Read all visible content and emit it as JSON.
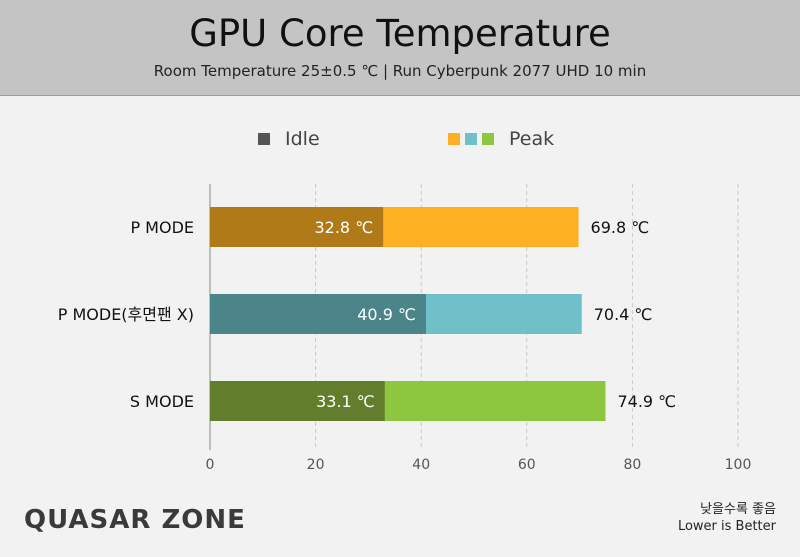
{
  "header": {
    "title": "GPU Core Temperature",
    "subtitle": "Room Temperature 25±0.5 ℃  |  Run Cyberpunk 2077 UHD 10 min"
  },
  "legend": {
    "idle_label": "Idle",
    "peak_label": "Peak",
    "idle_color": "#555555",
    "peak_colors": [
      "#fdb022",
      "#6fc0c8",
      "#8dc63f"
    ]
  },
  "chart_data": {
    "type": "bar",
    "orientation": "horizontal",
    "categories": [
      "P MODE",
      "P MODE(후면팬 X)",
      "S MODE"
    ],
    "series": [
      {
        "name": "Idle",
        "values": [
          32.8,
          40.9,
          33.1
        ],
        "labels": [
          "32.8 ℃",
          "40.9 ℃",
          "33.1 ℃"
        ]
      },
      {
        "name": "Peak",
        "values": [
          69.8,
          70.4,
          74.9
        ],
        "labels": [
          "69.8 ℃",
          "70.4 ℃",
          "74.9 ℃"
        ]
      }
    ],
    "bar_colors_peak": [
      "#fdb022",
      "#6fc0c8",
      "#8dc63f"
    ],
    "bar_colors_idle": [
      "#b07a18",
      "#4b8489",
      "#627e2c"
    ],
    "xlim": [
      0,
      100
    ],
    "xticks": [
      0,
      20,
      40,
      60,
      80,
      100
    ],
    "grid": true
  },
  "footer": {
    "logo": "QUASAR ZONE",
    "note_korean": "낮을수록 좋음",
    "note_english": "Lower is Better"
  }
}
